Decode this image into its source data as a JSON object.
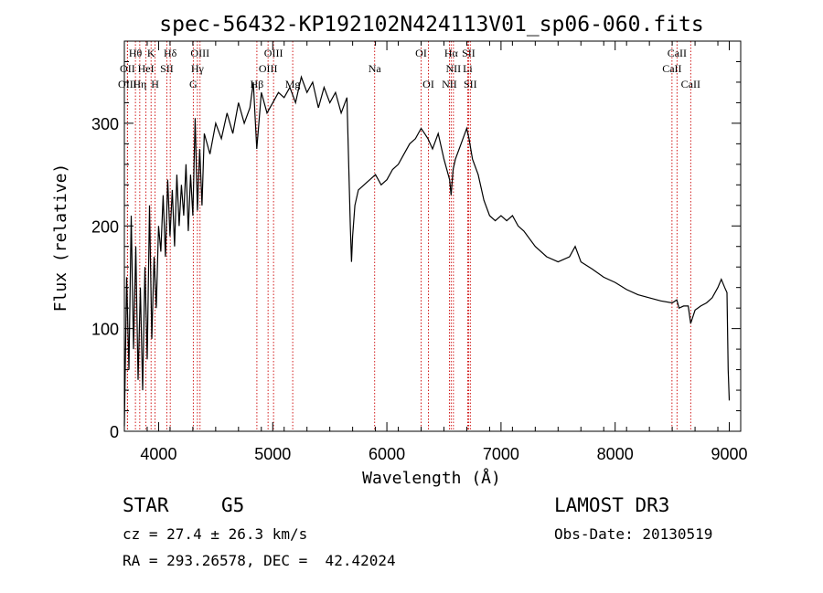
{
  "chart_data": {
    "type": "line",
    "title": "spec-56432-KP192102N424113V01_sp06-060.fits",
    "xlabel": "Wavelength (Å)",
    "ylabel": "Flux (relative)",
    "xlim": [
      3700,
      9100
    ],
    "ylim": [
      0,
      380
    ],
    "x_ticks": [
      4000,
      5000,
      6000,
      7000,
      8000,
      9000
    ],
    "y_ticks": [
      0,
      100,
      200,
      300
    ],
    "series": [
      {
        "name": "spectrum",
        "x": [
          3700,
          3720,
          3740,
          3760,
          3780,
          3800,
          3820,
          3840,
          3860,
          3880,
          3900,
          3920,
          3940,
          3960,
          3980,
          4000,
          4020,
          4040,
          4060,
          4080,
          4100,
          4120,
          4140,
          4160,
          4180,
          4200,
          4220,
          4240,
          4260,
          4280,
          4300,
          4320,
          4340,
          4360,
          4380,
          4400,
          4450,
          4500,
          4550,
          4600,
          4650,
          4700,
          4750,
          4800,
          4830,
          4860,
          4900,
          4950,
          5000,
          5050,
          5100,
          5150,
          5200,
          5250,
          5300,
          5350,
          5400,
          5450,
          5500,
          5550,
          5600,
          5650,
          5680,
          5690,
          5700,
          5720,
          5750,
          5800,
          5850,
          5900,
          5950,
          6000,
          6050,
          6100,
          6150,
          6200,
          6250,
          6300,
          6330,
          6360,
          6400,
          6450,
          6500,
          6550,
          6563,
          6580,
          6600,
          6650,
          6700,
          6720,
          6750,
          6800,
          6850,
          6900,
          6950,
          7000,
          7050,
          7100,
          7150,
          7200,
          7300,
          7400,
          7500,
          7600,
          7650,
          7700,
          7800,
          7900,
          8000,
          8100,
          8200,
          8300,
          8400,
          8500,
          8540,
          8560,
          8600,
          8640,
          8662,
          8700,
          8750,
          8800,
          8850,
          8900,
          8930,
          8960,
          8980,
          8990,
          9000
        ],
        "y": [
          5,
          150,
          60,
          210,
          80,
          180,
          50,
          140,
          40,
          160,
          70,
          220,
          90,
          170,
          120,
          200,
          175,
          230,
          170,
          245,
          190,
          235,
          180,
          250,
          200,
          240,
          210,
          260,
          195,
          250,
          210,
          305,
          215,
          275,
          220,
          290,
          270,
          300,
          285,
          310,
          290,
          320,
          300,
          315,
          340,
          275,
          330,
          310,
          320,
          330,
          325,
          335,
          320,
          345,
          330,
          340,
          315,
          335,
          320,
          330,
          310,
          325,
          200,
          165,
          190,
          220,
          235,
          240,
          245,
          250,
          240,
          245,
          255,
          260,
          270,
          280,
          285,
          295,
          290,
          285,
          275,
          290,
          265,
          245,
          230,
          255,
          265,
          280,
          295,
          285,
          265,
          250,
          225,
          210,
          205,
          210,
          205,
          210,
          200,
          195,
          180,
          170,
          165,
          170,
          180,
          165,
          158,
          150,
          145,
          138,
          133,
          130,
          127,
          125,
          128,
          120,
          122,
          122,
          105,
          118,
          122,
          125,
          130,
          140,
          148,
          140,
          135,
          60,
          30
        ]
      }
    ],
    "emission_lines": [
      {
        "label": "Hθ",
        "x": 3797,
        "row": 1
      },
      {
        "label": "OII",
        "x": 3727,
        "row": 2
      },
      {
        "label": "OIII",
        "x": 3727,
        "row": 3
      },
      {
        "label": "K",
        "x": 3934,
        "row": 1
      },
      {
        "label": "HeI",
        "x": 3889,
        "row": 2
      },
      {
        "label": "Hη",
        "x": 3835,
        "row": 3
      },
      {
        "label": "SII",
        "x": 4072,
        "row": 2
      },
      {
        "label": "H",
        "x": 3969,
        "row": 3
      },
      {
        "label": "Hδ",
        "x": 4102,
        "row": 1
      },
      {
        "label": "OIII",
        "x": 4363,
        "row": 1
      },
      {
        "label": "Hγ",
        "x": 4340,
        "row": 2
      },
      {
        "label": "G",
        "x": 4304,
        "row": 3
      },
      {
        "label": "OIII",
        "x": 5007,
        "row": 1
      },
      {
        "label": "OIII",
        "x": 4959,
        "row": 2
      },
      {
        "label": "Hβ",
        "x": 4861,
        "row": 3
      },
      {
        "label": "Mg",
        "x": 5175,
        "row": 3
      },
      {
        "label": "Na",
        "x": 5893,
        "row": 2
      },
      {
        "label": "OI",
        "x": 6300,
        "row": 1
      },
      {
        "label": "OI",
        "x": 6364,
        "row": 3
      },
      {
        "label": "Hα",
        "x": 6563,
        "row": 1
      },
      {
        "label": "SII",
        "x": 6716,
        "row": 1
      },
      {
        "label": "NII",
        "x": 6583,
        "row": 2
      },
      {
        "label": "Li",
        "x": 6708,
        "row": 2
      },
      {
        "label": "NII",
        "x": 6548,
        "row": 3
      },
      {
        "label": "SII",
        "x": 6731,
        "row": 3
      },
      {
        "label": "CaII",
        "x": 8542,
        "row": 1
      },
      {
        "label": "CaII",
        "x": 8498,
        "row": 2
      },
      {
        "label": "CaII",
        "x": 8662,
        "row": 3
      }
    ],
    "line_color": "#cc0000"
  },
  "info": {
    "class_label": "STAR",
    "subclass": "G5",
    "cz": "cz = 27.4 ± 26.3 km/s",
    "coords": "RA = 293.26578, DEC =  42.42024",
    "survey": "LAMOST DR3",
    "obs_date": "Obs-Date: 20130519"
  }
}
